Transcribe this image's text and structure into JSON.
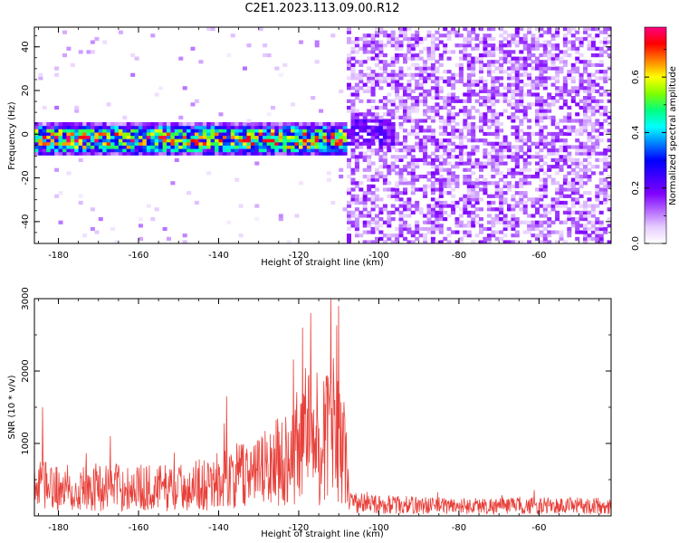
{
  "figure": {
    "title": "C2E1.2023.113.09.00.R12"
  },
  "chart_data": [
    {
      "type": "heatmap",
      "xlabel": "Height of straight line (km)",
      "ylabel": "Frequency (Hz)",
      "xlim": [
        -186,
        -42
      ],
      "ylim": [
        -50,
        49
      ],
      "xticks": [
        "-180",
        "-160",
        "-140",
        "-120",
        "-100",
        "-80",
        "-60"
      ],
      "yticks": [
        "-40",
        "-20",
        "0",
        "20",
        "40"
      ],
      "grid": false,
      "colorbar": {
        "label": "Normalized spectral amplitude",
        "range": [
          0,
          0.78
        ],
        "ticks": [
          "0.0",
          "0.2",
          "0.4",
          "0.6"
        ],
        "colors": [
          "#ffffff",
          "#e6ccff",
          "#b266ff",
          "#7f00ff",
          "#4000ff",
          "#0000ff",
          "#0080ff",
          "#00ffff",
          "#00ff80",
          "#80ff00",
          "#ffff00",
          "#ff8000",
          "#ff0000",
          "#ff0080"
        ]
      },
      "features": {
        "signal_band": {
          "x_range": [
            -186,
            -108
          ],
          "center_hz": -3,
          "half_width_hz": 6
        },
        "noise_region_x_start": -108
      }
    },
    {
      "type": "line",
      "xlabel": "Height of straight line (km)",
      "ylabel": "SNR (10 * v/v)",
      "xlim": [
        -186,
        -42
      ],
      "ylim": [
        0,
        3000
      ],
      "xticks": [
        "-180",
        "-160",
        "-140",
        "-120",
        "-100",
        "-80",
        "-60"
      ],
      "yticks": [
        "1000",
        "2000",
        "3000"
      ],
      "grid": false,
      "color": "#e8403a",
      "envelope": [
        {
          "x": -186,
          "y": 450
        },
        {
          "x": -180,
          "y": 420
        },
        {
          "x": -170,
          "y": 430
        },
        {
          "x": -160,
          "y": 420
        },
        {
          "x": -150,
          "y": 420
        },
        {
          "x": -140,
          "y": 520
        },
        {
          "x": -135,
          "y": 600
        },
        {
          "x": -128,
          "y": 700
        },
        {
          "x": -122,
          "y": 900
        },
        {
          "x": -118,
          "y": 1300
        },
        {
          "x": -115,
          "y": 900
        },
        {
          "x": -112,
          "y": 1400
        },
        {
          "x": -109,
          "y": 1100
        },
        {
          "x": -107,
          "y": 200
        },
        {
          "x": -100,
          "y": 170
        },
        {
          "x": -80,
          "y": 150
        },
        {
          "x": -60,
          "y": 150
        },
        {
          "x": -42,
          "y": 150
        }
      ],
      "peaks": [
        {
          "x": -184,
          "y": 1500
        },
        {
          "x": -167,
          "y": 1100
        },
        {
          "x": -138,
          "y": 1650
        },
        {
          "x": -119,
          "y": 2600
        },
        {
          "x": -117,
          "y": 2800
        },
        {
          "x": -112,
          "y": 3000
        },
        {
          "x": -110,
          "y": 2900
        }
      ]
    }
  ]
}
